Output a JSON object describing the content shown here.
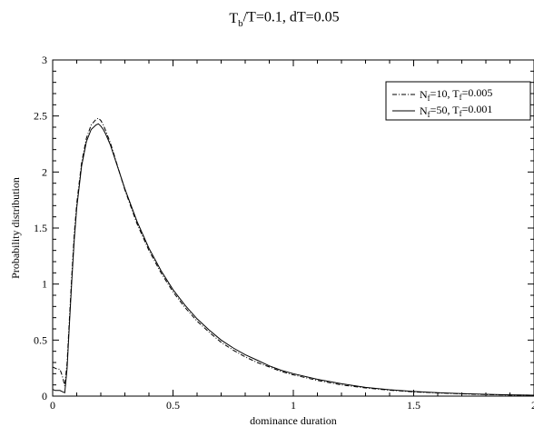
{
  "chart_data": {
    "type": "line",
    "title": {
      "parts": [
        {
          "text": "T",
          "sub": false
        },
        {
          "text": "b",
          "sub": true
        },
        {
          "text": "/T=0.1, dT=0.05",
          "sub": false
        }
      ]
    },
    "xlabel": "dominance duration",
    "ylabel": "Probability distribution",
    "xlim": [
      0,
      2
    ],
    "ylim": [
      0,
      3
    ],
    "x_ticks": [
      0,
      0.5,
      1,
      1.5,
      2
    ],
    "x_tick_labels": [
      "0",
      "0.5",
      "1",
      "1.5",
      "2"
    ],
    "y_ticks": [
      0,
      0.5,
      1,
      1.5,
      2,
      2.5,
      3
    ],
    "y_tick_labels": [
      "0",
      "0.5",
      "1",
      "1.5",
      "2",
      "2.5",
      "3"
    ],
    "grid": false,
    "legend_position": "top-right",
    "series": [
      {
        "name_parts": [
          {
            "text": "N",
            "sub": false
          },
          {
            "text": "f",
            "sub": true
          },
          {
            "text": "=10, T",
            "sub": false
          },
          {
            "text": "f",
            "sub": true
          },
          {
            "text": "=0.005",
            "sub": false
          }
        ],
        "style": "dash-dot",
        "x": [
          0,
          0.01,
          0.02,
          0.03,
          0.04,
          0.05,
          0.06,
          0.07,
          0.08,
          0.09,
          0.1,
          0.12,
          0.14,
          0.16,
          0.18,
          0.19,
          0.2,
          0.21,
          0.22,
          0.24,
          0.26,
          0.28,
          0.3,
          0.35,
          0.4,
          0.45,
          0.5,
          0.55,
          0.6,
          0.65,
          0.7,
          0.75,
          0.8,
          0.85,
          0.9,
          0.95,
          1.0,
          1.1,
          1.2,
          1.3,
          1.4,
          1.5,
          1.6,
          1.7,
          1.8,
          1.9,
          2.0
        ],
        "y": [
          0.26,
          0.25,
          0.24,
          0.24,
          0.18,
          0.09,
          0.3,
          0.7,
          1.1,
          1.45,
          1.72,
          2.08,
          2.3,
          2.42,
          2.47,
          2.48,
          2.46,
          2.42,
          2.37,
          2.26,
          2.12,
          1.98,
          1.84,
          1.54,
          1.3,
          1.1,
          0.93,
          0.79,
          0.67,
          0.57,
          0.48,
          0.41,
          0.35,
          0.3,
          0.26,
          0.22,
          0.19,
          0.14,
          0.1,
          0.073,
          0.053,
          0.038,
          0.028,
          0.02,
          0.014,
          0.01,
          0.008
        ]
      },
      {
        "name_parts": [
          {
            "text": "N",
            "sub": false
          },
          {
            "text": "f",
            "sub": true
          },
          {
            "text": "=50, T",
            "sub": false
          },
          {
            "text": "f",
            "sub": true
          },
          {
            "text": "=0.001",
            "sub": false
          }
        ],
        "style": "solid",
        "x": [
          0,
          0.01,
          0.02,
          0.03,
          0.04,
          0.05,
          0.06,
          0.07,
          0.08,
          0.09,
          0.1,
          0.12,
          0.14,
          0.16,
          0.18,
          0.19,
          0.2,
          0.21,
          0.22,
          0.24,
          0.26,
          0.28,
          0.3,
          0.35,
          0.4,
          0.45,
          0.5,
          0.55,
          0.6,
          0.65,
          0.7,
          0.75,
          0.8,
          0.85,
          0.9,
          0.95,
          1.0,
          1.1,
          1.2,
          1.3,
          1.4,
          1.5,
          1.6,
          1.7,
          1.8,
          1.9,
          2.0
        ],
        "y": [
          0.06,
          0.05,
          0.05,
          0.05,
          0.04,
          0.03,
          0.25,
          0.65,
          1.05,
          1.4,
          1.68,
          2.05,
          2.27,
          2.38,
          2.42,
          2.43,
          2.41,
          2.38,
          2.34,
          2.24,
          2.11,
          1.98,
          1.85,
          1.56,
          1.32,
          1.12,
          0.95,
          0.81,
          0.69,
          0.59,
          0.5,
          0.43,
          0.37,
          0.32,
          0.27,
          0.23,
          0.2,
          0.15,
          0.11,
          0.078,
          0.057,
          0.041,
          0.03,
          0.022,
          0.016,
          0.011,
          0.008
        ]
      }
    ]
  }
}
